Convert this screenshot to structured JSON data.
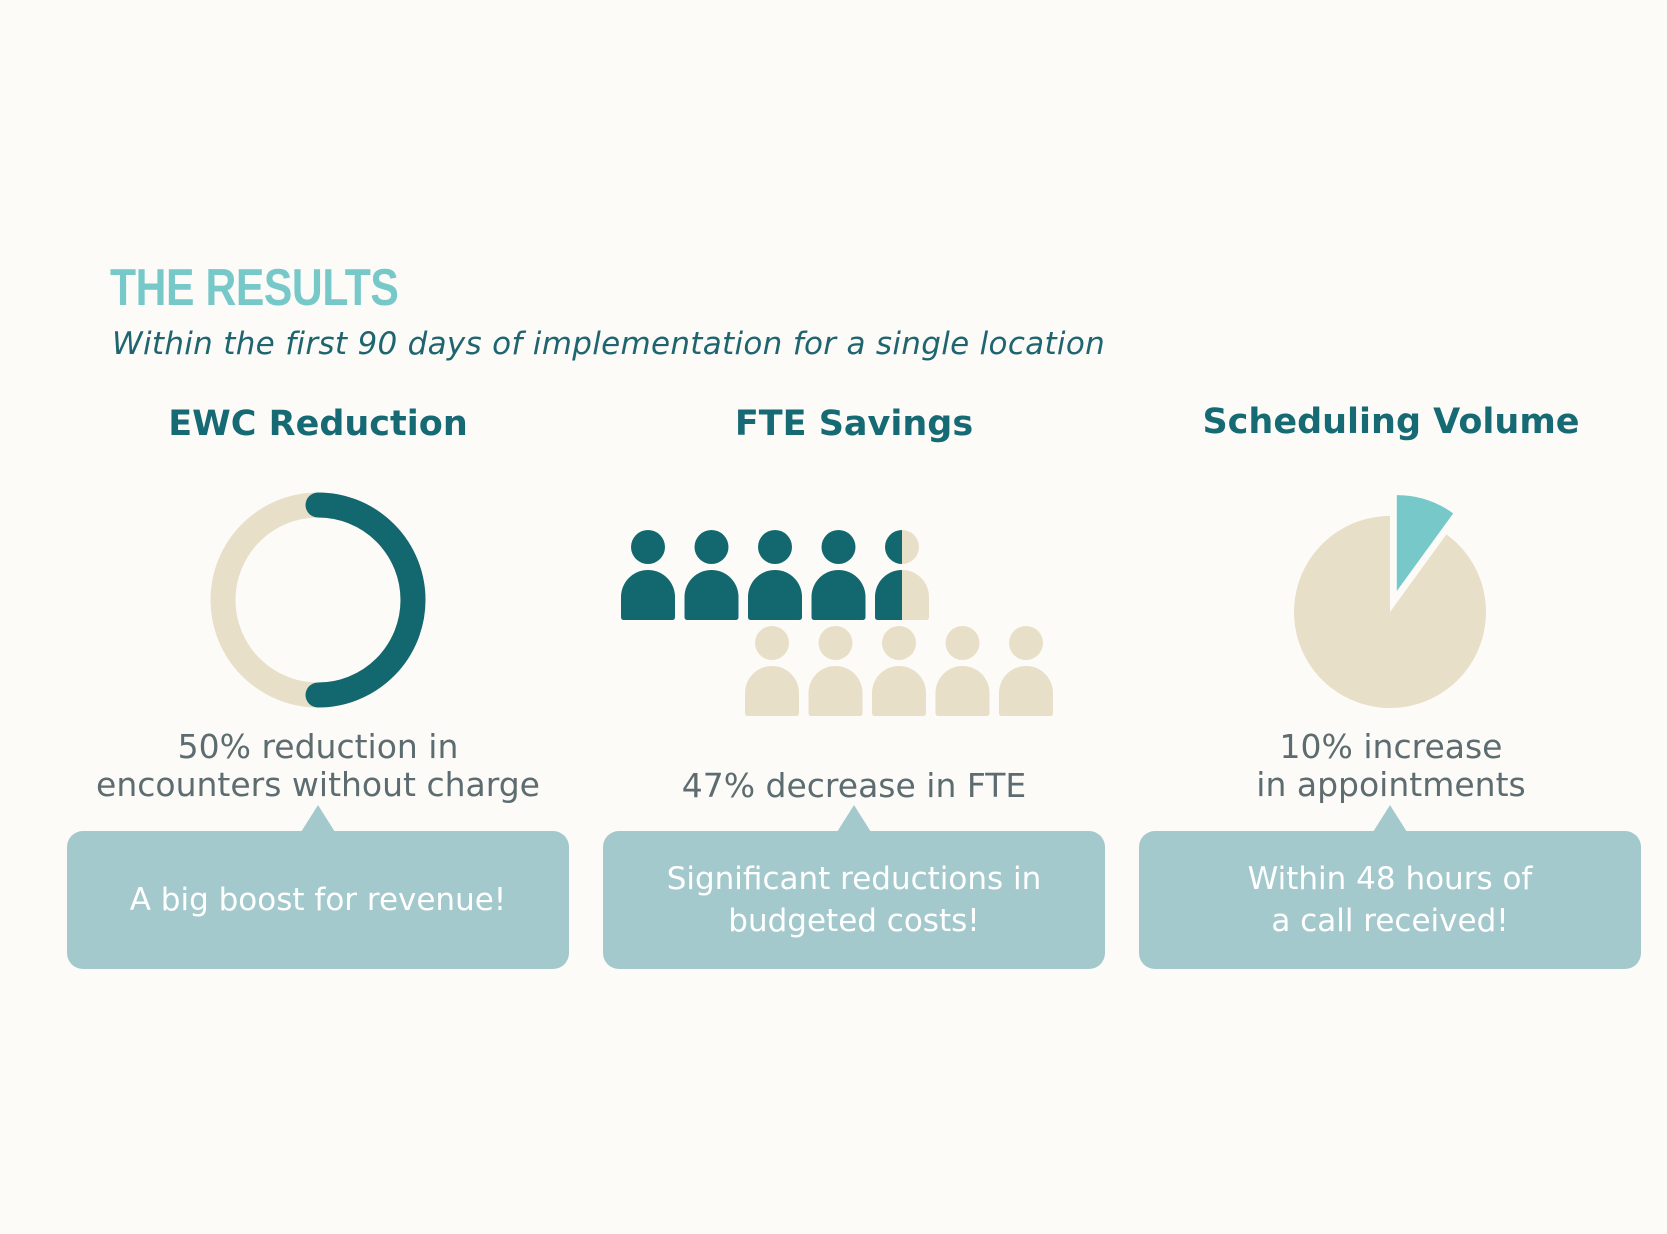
{
  "header": {
    "title": "THE RESULTS",
    "subtitle": "Within the first 90 days of implementation for a single location"
  },
  "colors": {
    "dark_teal": "#13686f",
    "light_teal": "#76c8c9",
    "beige": "#e8dfc8",
    "bubble": "#a4c9cd",
    "background": "#fcfbf7"
  },
  "metrics": [
    {
      "title": "EWC Reduction",
      "stat": "50% reduction in\nencounters without charge",
      "callout": "A big boost for revenue!",
      "icon": "donut-chart-icon",
      "fraction": 0.5
    },
    {
      "title": "FTE Savings",
      "stat": "47% decrease in FTE",
      "callout": "Significant reductions in\nbudgeted costs!",
      "icon": "people-icon",
      "fraction": 0.47,
      "people_total": 10,
      "people_filled": 4.5
    },
    {
      "title": "Scheduling Volume",
      "stat": "10% increase\nin appointments",
      "callout": "Within 48 hours of\na call received!",
      "icon": "pie-chart-icon",
      "fraction": 0.1
    }
  ]
}
